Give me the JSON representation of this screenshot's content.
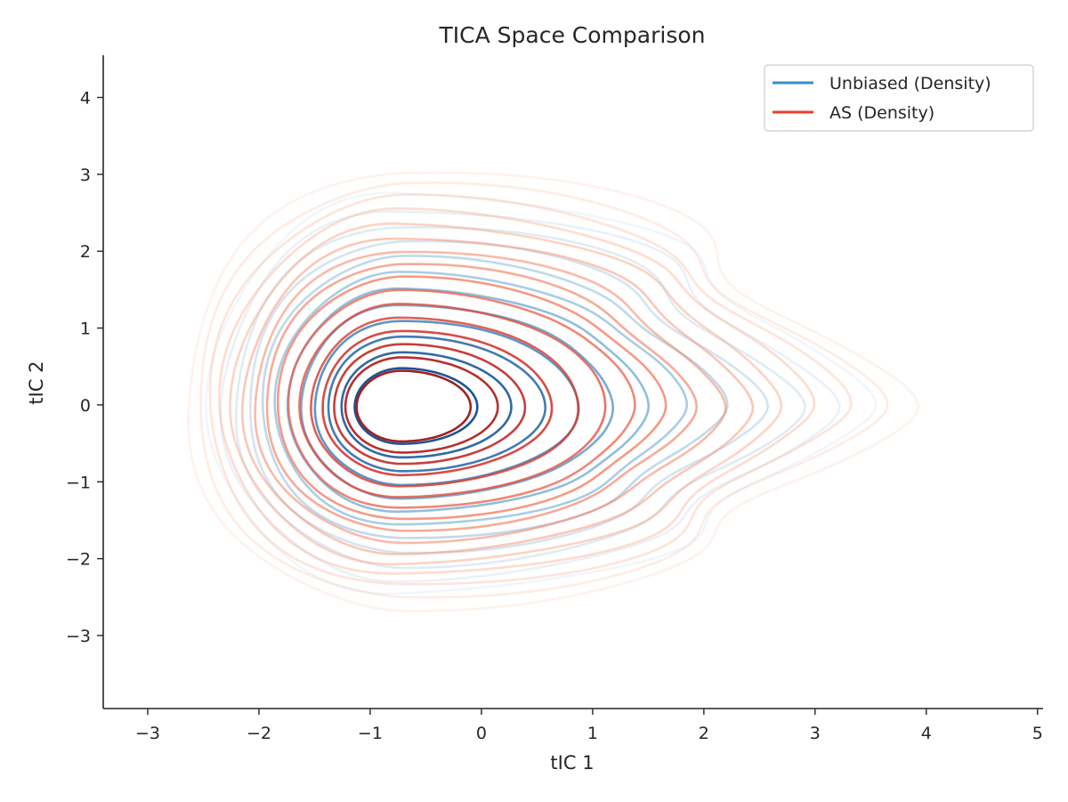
{
  "chart_data": {
    "type": "contour",
    "title": "TICA Space Comparison",
    "xlabel": "tIC 1",
    "ylabel": "tIC 2",
    "xlim": [
      -3.4,
      5.05
    ],
    "ylim": [
      -3.95,
      4.55
    ],
    "xticks": [
      -3,
      -2,
      -1,
      0,
      1,
      2,
      3,
      4,
      5
    ],
    "yticks": [
      -3,
      -2,
      -1,
      0,
      1,
      2,
      3,
      4
    ],
    "grid": false,
    "legend_position": "top-right",
    "legend": [
      {
        "label": "Unbiased (Density)",
        "color": "#3a8dc4"
      },
      {
        "label": "AS (Density)",
        "color": "#e8402c"
      }
    ],
    "series": [
      {
        "name": "Unbiased (Density)",
        "colormap": "Blues",
        "peak": [
          -0.72,
          -0.03
        ],
        "shape": {
          "outer_left": -2.45,
          "outer_right": 3.3,
          "outer_top": 2.75,
          "outer_bottom": -2.45,
          "secondary_lobe": [
            2.0,
            0.2
          ]
        },
        "level_count": 12
      },
      {
        "name": "AS (Density)",
        "colormap": "Reds",
        "peak": [
          -0.72,
          -0.03
        ],
        "shape": {
          "outer_left": -2.65,
          "outer_right": 3.55,
          "outer_top": 3.05,
          "outer_bottom": -2.65,
          "secondary_lobe": [
            2.2,
            0.2
          ]
        },
        "level_count": 16
      }
    ]
  }
}
